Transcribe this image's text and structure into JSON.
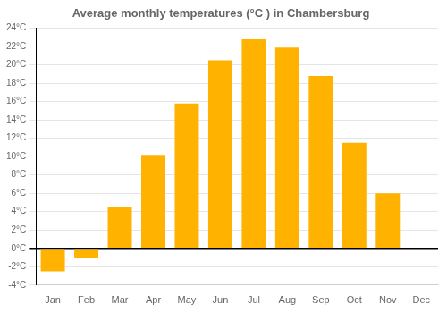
{
  "chart_data": {
    "type": "bar",
    "title": "Average monthly temperatures (°C ) in Chambersburg",
    "categories": [
      "Jan",
      "Feb",
      "Mar",
      "Apr",
      "May",
      "Jun",
      "Jul",
      "Aug",
      "Sep",
      "Oct",
      "Nov",
      "Dec"
    ],
    "values": [
      -2.5,
      -1.0,
      4.5,
      10.2,
      15.8,
      20.5,
      22.8,
      21.9,
      18.8,
      11.5,
      6.0,
      0.0
    ],
    "color": "#FFB300",
    "ylim": [
      -4,
      24
    ],
    "yticks": [
      {
        "value": -4,
        "label": "-4°C"
      },
      {
        "value": -2,
        "label": "-2°C"
      },
      {
        "value": 0,
        "label": "0°C"
      },
      {
        "value": 2,
        "label": "2°C"
      },
      {
        "value": 4,
        "label": "4°C"
      },
      {
        "value": 6,
        "label": "6°C"
      },
      {
        "value": 8,
        "label": "8°C"
      },
      {
        "value": 10,
        "label": "10°C"
      },
      {
        "value": 12,
        "label": "12°C"
      },
      {
        "value": 14,
        "label": "14°C"
      },
      {
        "value": 16,
        "label": "16°C"
      },
      {
        "value": 18,
        "label": "18°C"
      },
      {
        "value": 20,
        "label": "20°C"
      },
      {
        "value": 22,
        "label": "22°C"
      },
      {
        "value": 24,
        "label": "24°C"
      }
    ],
    "grid": true
  }
}
